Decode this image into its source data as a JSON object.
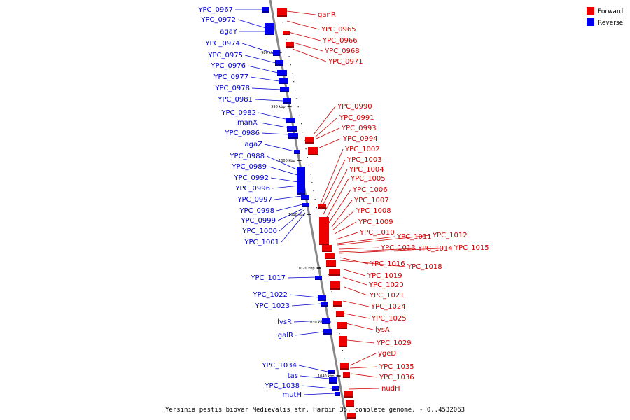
{
  "caption": "Yersinia pestis biovar Medievalis str. Harbin 35, complete genome. - 0..4532063",
  "legend": [
    {
      "label": "Forward",
      "color": "#ee0000"
    },
    {
      "label": "Reverse",
      "color": "#0000ee"
    }
  ],
  "colors": {
    "forward": "#ee0000",
    "forward_line": "#cc0000",
    "reverse": "#0000ee",
    "reverse_line": "#0000cc",
    "axis": "#888888"
  },
  "ticks": [
    "980 kbp",
    "990 kbp",
    "1000 kbp",
    "1010 kbp",
    "1020 kbp",
    "1030 kbp",
    "1040 kbp"
  ],
  "forward_labels": [
    "ganR",
    "YPC_0965",
    "YPC_0966",
    "YPC_0968",
    "YPC_0971",
    "YPC_0990",
    "YPC_0991",
    "YPC_0993",
    "YPC_0994",
    "YPC_1002",
    "YPC_1003",
    "YPC_1004",
    "YPC_1005",
    "YPC_1006",
    "YPC_1007",
    "YPC_1008",
    "YPC_1009",
    "YPC_1010",
    "YPC_1011",
    "YPC_1012",
    "YPC_1013",
    "YPC_1014",
    "YPC_1015",
    "YPC_1016",
    "YPC_1018",
    "YPC_1019",
    "YPC_1020",
    "YPC_1021",
    "YPC_1024",
    "YPC_1025",
    "lysA",
    "YPC_1029",
    "ygeD",
    "YPC_1035",
    "YPC_1036",
    "nudH"
  ],
  "reverse_labels": [
    "YPC_0967",
    "YPC_0972",
    "agaY",
    "YPC_0974",
    "YPC_0975",
    "YPC_0976",
    "YPC_0977",
    "YPC_0978",
    "YPC_0981",
    "YPC_0982",
    "manX",
    "YPC_0986",
    "agaZ",
    "YPC_0988",
    "YPC_0989",
    "YPC_0992",
    "YPC_0996",
    "YPC_0997",
    "YPC_0998",
    "YPC_0999",
    "YPC_1000",
    "YPC_1001",
    "YPC_1017",
    "YPC_1022",
    "YPC_1023",
    "lysR",
    "galR",
    "YPC_1034",
    "tas",
    "YPC_1038",
    "mutH"
  ]
}
